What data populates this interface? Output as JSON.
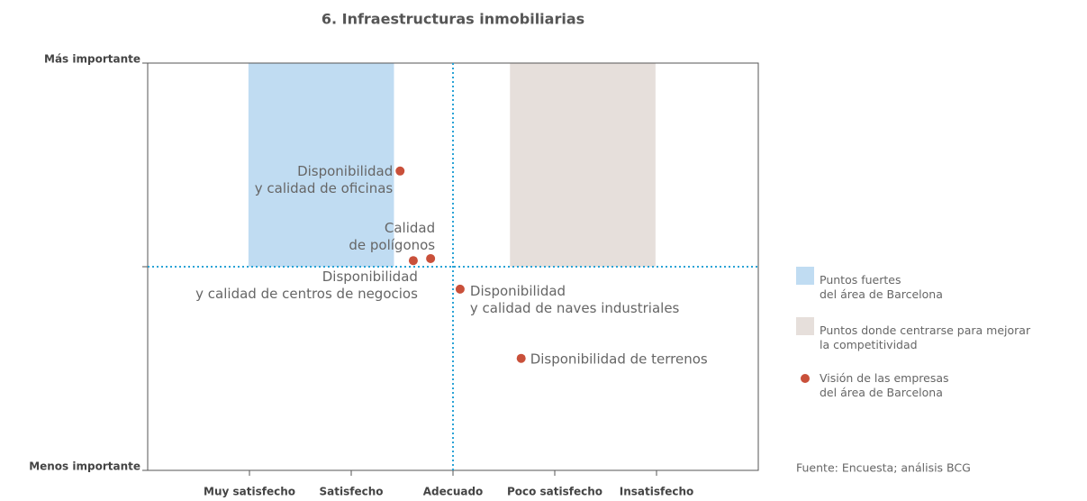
{
  "chart_data": {
    "type": "scatter",
    "title": "6. Infraestructuras inmobiliarias",
    "xlim": [
      0,
      6
    ],
    "xticks": [
      {
        "value": 1,
        "label": "Muy satisfecho"
      },
      {
        "value": 2,
        "label": "Satisfecho"
      },
      {
        "value": 3,
        "label": "Adecuado"
      },
      {
        "value": 4,
        "label": "Poco satisfecho"
      },
      {
        "value": 5,
        "label": "Insatisfecho"
      }
    ],
    "ylim": [
      -1,
      1
    ],
    "yticks": [
      {
        "value": -1,
        "label": "Menos importante"
      },
      {
        "value": 1,
        "label": "Más importante"
      }
    ],
    "reference_lines": {
      "x": 3,
      "y": 0,
      "color": "#2aa3d6"
    },
    "regions": [
      {
        "name": [
          "Puntos fuertes",
          "del área de Barcelona"
        ],
        "color": "#c0dcf2",
        "x": [
          0.99,
          2.42
        ],
        "y": [
          0,
          1
        ]
      },
      {
        "name": [
          "Puntos donde centrarse para mejorar",
          "la competitividad"
        ],
        "color": "#e6dfdb",
        "x": [
          3.56,
          4.99
        ],
        "y": [
          0,
          1
        ]
      }
    ],
    "series": [
      {
        "name": [
          "Visión de las empresas",
          "del área de Barcelona"
        ],
        "color": "#c9503a",
        "x": [
          2.48,
          2.78,
          2.61,
          3.07,
          3.67
        ],
        "values": [
          0.47,
          0.04,
          0.03,
          -0.11,
          -0.45
        ],
        "labels": [
          [
            "Disponibilidad",
            "y calidad de oficinas"
          ],
          [
            "Calidad",
            "de polígonos"
          ],
          [
            "Disponibilidad",
            "y calidad de centros de negocios"
          ],
          [
            "Disponibilidad",
            "y calidad de naves industriales"
          ],
          [
            "Disponibilidad de terrenos"
          ]
        ]
      }
    ],
    "source": "Fuente: Encuesta; análisis BCG"
  }
}
